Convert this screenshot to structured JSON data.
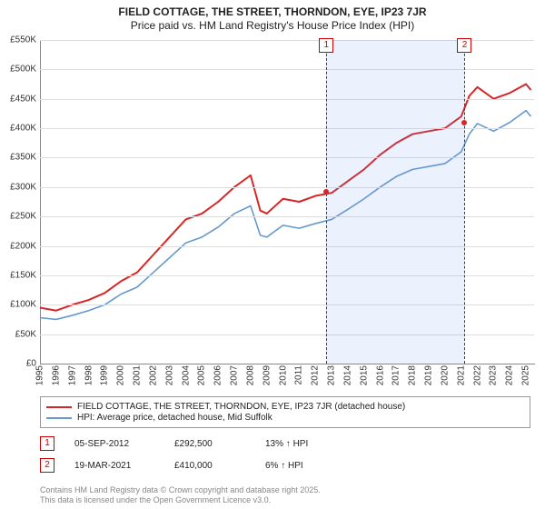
{
  "title_line1": "FIELD COTTAGE, THE STREET, THORNDON, EYE, IP23 7JR",
  "title_line2": "Price paid vs. HM Land Registry's House Price Index (HPI)",
  "chart": {
    "type": "line",
    "x_years": [
      1995,
      1996,
      1997,
      1998,
      1999,
      2000,
      2001,
      2002,
      2003,
      2004,
      2005,
      2006,
      2007,
      2008,
      2009,
      2010,
      2011,
      2012,
      2013,
      2014,
      2015,
      2016,
      2017,
      2018,
      2019,
      2020,
      2021,
      2022,
      2023,
      2024,
      2025
    ],
    "x_min": 1995,
    "x_max": 2025.5,
    "ylim": [
      0,
      550000
    ],
    "ytick_step": 50000,
    "ytick_labels": [
      "£0",
      "£50K",
      "£100K",
      "£150K",
      "£200K",
      "£250K",
      "£300K",
      "£350K",
      "£400K",
      "£450K",
      "£500K",
      "£550K"
    ],
    "grid_color": "#dddddd",
    "background_color": "#ffffff",
    "axis_color": "#888888",
    "series": [
      {
        "name": "price_paid",
        "label": "FIELD COTTAGE, THE STREET, THORNDON, EYE, IP23 7JR (detached house)",
        "color": "#d62728",
        "width": 2,
        "points": [
          [
            1995,
            95000
          ],
          [
            1996,
            90000
          ],
          [
            1997,
            100000
          ],
          [
            1998,
            108000
          ],
          [
            1999,
            120000
          ],
          [
            2000,
            140000
          ],
          [
            2001,
            155000
          ],
          [
            2002,
            185000
          ],
          [
            2003,
            215000
          ],
          [
            2004,
            245000
          ],
          [
            2005,
            255000
          ],
          [
            2006,
            275000
          ],
          [
            2007,
            300000
          ],
          [
            2008,
            320000
          ],
          [
            2008.6,
            260000
          ],
          [
            2009,
            255000
          ],
          [
            2010,
            280000
          ],
          [
            2011,
            275000
          ],
          [
            2012,
            285000
          ],
          [
            2013,
            290000
          ],
          [
            2014,
            310000
          ],
          [
            2015,
            330000
          ],
          [
            2016,
            355000
          ],
          [
            2017,
            375000
          ],
          [
            2018,
            390000
          ],
          [
            2019,
            395000
          ],
          [
            2020,
            400000
          ],
          [
            2021,
            420000
          ],
          [
            2021.5,
            455000
          ],
          [
            2022,
            470000
          ],
          [
            2023,
            450000
          ],
          [
            2024,
            460000
          ],
          [
            2025,
            475000
          ],
          [
            2025.3,
            465000
          ]
        ]
      },
      {
        "name": "hpi",
        "label": "HPI: Average price, detached house, Mid Suffolk",
        "color": "#6699cc",
        "width": 1.6,
        "points": [
          [
            1995,
            78000
          ],
          [
            1996,
            75000
          ],
          [
            1997,
            82000
          ],
          [
            1998,
            90000
          ],
          [
            1999,
            100000
          ],
          [
            2000,
            118000
          ],
          [
            2001,
            130000
          ],
          [
            2002,
            155000
          ],
          [
            2003,
            180000
          ],
          [
            2004,
            205000
          ],
          [
            2005,
            215000
          ],
          [
            2006,
            232000
          ],
          [
            2007,
            255000
          ],
          [
            2008,
            268000
          ],
          [
            2008.6,
            218000
          ],
          [
            2009,
            215000
          ],
          [
            2010,
            235000
          ],
          [
            2011,
            230000
          ],
          [
            2012,
            238000
          ],
          [
            2013,
            245000
          ],
          [
            2014,
            262000
          ],
          [
            2015,
            280000
          ],
          [
            2016,
            300000
          ],
          [
            2017,
            318000
          ],
          [
            2018,
            330000
          ],
          [
            2019,
            335000
          ],
          [
            2020,
            340000
          ],
          [
            2021,
            360000
          ],
          [
            2021.5,
            390000
          ],
          [
            2022,
            408000
          ],
          [
            2023,
            395000
          ],
          [
            2024,
            410000
          ],
          [
            2025,
            430000
          ],
          [
            2025.3,
            420000
          ]
        ]
      }
    ],
    "shaded_region": {
      "from": 2012.68,
      "to": 2021.21,
      "color": "rgba(100,149,237,0.12)"
    },
    "sale_markers": [
      {
        "n": "1",
        "date_frac": 2012.68,
        "price": 292500
      },
      {
        "n": "2",
        "date_frac": 2021.21,
        "price": 410000
      }
    ]
  },
  "legend": {
    "border_color": "#999999"
  },
  "sales": [
    {
      "n": "1",
      "date": "05-SEP-2012",
      "price": "£292,500",
      "hpi_delta": "13% ↑ HPI"
    },
    {
      "n": "2",
      "date": "19-MAR-2021",
      "price": "£410,000",
      "hpi_delta": "6% ↑ HPI"
    }
  ],
  "footer_line1": "Contains HM Land Registry data © Crown copyright and database right 2025.",
  "footer_line2": "This data is licensed under the Open Government Licence v3.0."
}
